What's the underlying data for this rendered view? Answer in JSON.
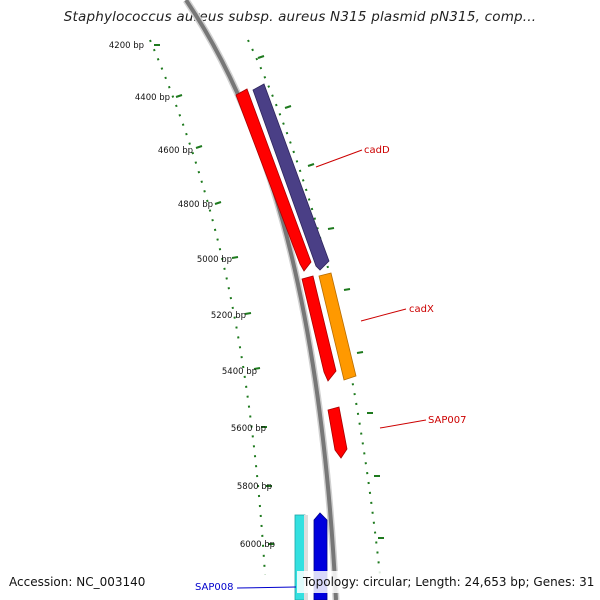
{
  "title": "Staphylococcus aureus subsp. aureus N315 plasmid pN315, comp...",
  "accession": "Accession: NC_003140",
  "info": "Topology: circular; Length: 24,653 bp; Genes: 31",
  "ruler_labels": [
    "4200 bp",
    "4400 bp",
    "4600 bp",
    "4800 bp",
    "5000 bp",
    "5200 bp",
    "5400 bp",
    "5600 bp",
    "5800 bp",
    "6000 bp"
  ],
  "gene_labels": {
    "cadD": "cadD",
    "cadX": "cadX",
    "SAP007": "SAP007",
    "SAP008": "SAP008"
  },
  "colors": {
    "backbone": "#777777",
    "tick": "#1e7a1e",
    "red_gene": "#ff0000",
    "purple_gene": "#4a3f86",
    "orange_gene": "#ff9900",
    "cyan_gene": "#33e0e0",
    "blue_gene": "#0000dd",
    "label_red": "#cc0000",
    "label_blue": "#0000cc"
  }
}
